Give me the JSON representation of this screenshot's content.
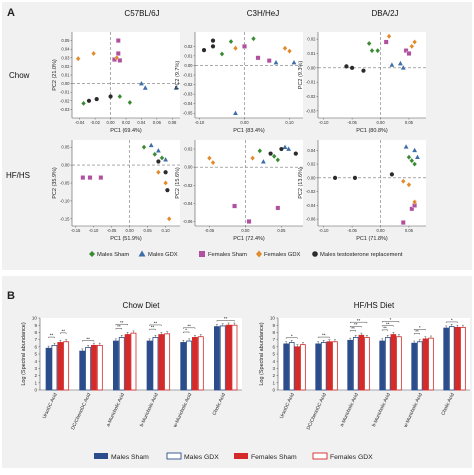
{
  "panel_a": {
    "label": "A",
    "strains": [
      "C57BL/6J",
      "C3H/HeJ",
      "DBA/2J"
    ],
    "diets": [
      "Chow",
      "HF/HS"
    ],
    "legend": [
      "Males Sham",
      "Males GDX",
      "Females Sham",
      "Females GDX",
      "Males testosterone replacement"
    ],
    "colors": {
      "males_sham": "#3a8a34",
      "males_gdx": "#3e6ea8",
      "females_sham": "#b0509e",
      "females_gdx": "#e28a2a",
      "males_testo": "#2b2b2b"
    }
  },
  "panel_b": {
    "label": "B",
    "legend": [
      "Males Sham",
      "Males GDX",
      "Females Sham",
      "Females GDX"
    ],
    "colors": {
      "males_sham": "#2b4d8c",
      "females_sham": "#d42a2a"
    },
    "ylabel": "Log (Spectral abundance)"
  },
  "chart_data": [
    {
      "type": "scatter",
      "title": "C57BL/6J",
      "row": "Chow",
      "xlabel": "PC1 (69.4%)",
      "ylabel": "PC2 (21.0%)",
      "xlim": [
        -0.05,
        0.09
      ],
      "ylim": [
        -0.04,
        0.06
      ],
      "xticks": [
        "-0.04",
        "-0.02",
        "0.00",
        "0.02",
        "0.04",
        "0.06",
        "0.08"
      ],
      "yticks": [
        "-0.03",
        "-0.02",
        "-0.01",
        "0.00",
        "0.01",
        "0.02",
        "0.03",
        "0.04",
        "0.05"
      ],
      "points": [
        {
          "g": "females_sham",
          "x": 0.01,
          "y": 0.05
        },
        {
          "g": "females_sham",
          "x": 0.01,
          "y": 0.035
        },
        {
          "g": "females_sham",
          "x": 0.005,
          "y": 0.028
        },
        {
          "g": "females_sham",
          "x": 0.012,
          "y": 0.027
        },
        {
          "g": "females_gdx",
          "x": -0.042,
          "y": 0.029
        },
        {
          "g": "females_gdx",
          "x": -0.022,
          "y": 0.035
        },
        {
          "g": "females_gdx",
          "x": 0.008,
          "y": 0.03
        },
        {
          "g": "males_sham",
          "x": -0.035,
          "y": -0.023
        },
        {
          "g": "males_sham",
          "x": 0.012,
          "y": -0.015
        },
        {
          "g": "males_sham",
          "x": 0.025,
          "y": -0.022
        },
        {
          "g": "males_gdx",
          "x": 0.045,
          "y": -0.005
        },
        {
          "g": "males_gdx",
          "x": 0.085,
          "y": -0.005
        },
        {
          "g": "males_gdx",
          "x": 0.04,
          "y": 0.0
        },
        {
          "g": "males_testo",
          "x": -0.028,
          "y": -0.02
        },
        {
          "g": "males_testo",
          "x": -0.018,
          "y": -0.018
        },
        {
          "g": "males_testo",
          "x": 0.0,
          "y": -0.015
        }
      ]
    },
    {
      "type": "scatter",
      "title": "C3H/HeJ",
      "row": "Chow",
      "xlabel": "PC1 (83.4%)",
      "ylabel": "PC2 (9.7%)",
      "xlim": [
        -0.11,
        0.13
      ],
      "ylim": [
        -0.055,
        0.035
      ],
      "xticks": [
        "-0.10",
        "0.00",
        "0.10"
      ],
      "yticks": [
        "-0.05",
        "-0.04",
        "-0.03",
        "-0.02",
        "-0.01",
        "0.00",
        "0.01",
        "0.02"
      ],
      "points": [
        {
          "g": "females_sham",
          "x": 0.0,
          "y": 0.02
        },
        {
          "g": "females_sham",
          "x": 0.03,
          "y": 0.008
        },
        {
          "g": "females_sham",
          "x": 0.055,
          "y": 0.005
        },
        {
          "g": "females_gdx",
          "x": -0.02,
          "y": 0.018
        },
        {
          "g": "females_gdx",
          "x": 0.09,
          "y": 0.018
        },
        {
          "g": "females_gdx",
          "x": 0.1,
          "y": 0.015
        },
        {
          "g": "males_sham",
          "x": -0.03,
          "y": 0.025
        },
        {
          "g": "males_sham",
          "x": 0.02,
          "y": 0.028
        },
        {
          "g": "males_sham",
          "x": -0.05,
          "y": 0.012
        },
        {
          "g": "males_gdx",
          "x": 0.07,
          "y": 0.003
        },
        {
          "g": "males_gdx",
          "x": 0.11,
          "y": 0.003
        },
        {
          "g": "males_gdx",
          "x": -0.02,
          "y": -0.05
        },
        {
          "g": "males_testo",
          "x": -0.07,
          "y": 0.026
        },
        {
          "g": "males_testo",
          "x": -0.07,
          "y": 0.02
        },
        {
          "g": "males_testo",
          "x": -0.09,
          "y": 0.016
        }
      ]
    },
    {
      "type": "scatter",
      "title": "DBA/2J",
      "row": "Chow",
      "xlabel": "PC1 (80.8%)",
      "ylabel": "PC2 (9.3%)",
      "xlim": [
        -0.11,
        0.08
      ],
      "ylim": [
        -0.035,
        0.025
      ],
      "xticks": [
        "-0.10",
        "-0.05",
        "0.00",
        "0.05"
      ],
      "yticks": [
        "-0.03",
        "-0.02",
        "-0.01",
        "0.00",
        "0.01",
        "0.02"
      ],
      "points": [
        {
          "g": "females_sham",
          "x": 0.01,
          "y": 0.018
        },
        {
          "g": "females_sham",
          "x": 0.045,
          "y": 0.012
        },
        {
          "g": "females_sham",
          "x": 0.05,
          "y": 0.01
        },
        {
          "g": "females_gdx",
          "x": 0.015,
          "y": 0.022
        },
        {
          "g": "females_gdx",
          "x": 0.055,
          "y": 0.015
        },
        {
          "g": "females_gdx",
          "x": 0.06,
          "y": 0.018
        },
        {
          "g": "males_sham",
          "x": -0.02,
          "y": 0.017
        },
        {
          "g": "males_sham",
          "x": -0.005,
          "y": 0.012
        },
        {
          "g": "males_sham",
          "x": -0.015,
          "y": 0.012
        },
        {
          "g": "males_gdx",
          "x": 0.02,
          "y": 0.002
        },
        {
          "g": "males_gdx",
          "x": 0.035,
          "y": 0.003
        },
        {
          "g": "males_gdx",
          "x": 0.04,
          "y": 0.0
        },
        {
          "g": "males_testo",
          "x": -0.06,
          "y": 0.001
        },
        {
          "g": "males_testo",
          "x": -0.05,
          "y": 0.0
        },
        {
          "g": "males_testo",
          "x": -0.03,
          "y": -0.002
        }
      ]
    },
    {
      "type": "scatter",
      "title": "C57BL/6J",
      "row": "HF/HS",
      "xlabel": "PC1 (51.9%)",
      "ylabel": "PC2 (35.9%)",
      "xlim": [
        -0.16,
        0.14
      ],
      "ylim": [
        -0.17,
        0.07
      ],
      "xticks": [
        "-0.15",
        "-0.10",
        "-0.05",
        "0.00",
        "0.05",
        "0.10"
      ],
      "yticks": [
        "-0.15",
        "-0.10",
        "-0.05",
        "0.00",
        "0.05"
      ],
      "points": [
        {
          "g": "females_sham",
          "x": -0.13,
          "y": -0.035
        },
        {
          "g": "females_sham",
          "x": -0.11,
          "y": -0.035
        },
        {
          "g": "females_sham",
          "x": -0.08,
          "y": -0.035
        },
        {
          "g": "females_gdx",
          "x": 0.1,
          "y": -0.05
        },
        {
          "g": "females_gdx",
          "x": 0.11,
          "y": -0.15
        },
        {
          "g": "females_gdx",
          "x": 0.08,
          "y": -0.02
        },
        {
          "g": "males_sham",
          "x": 0.04,
          "y": 0.05
        },
        {
          "g": "males_sham",
          "x": 0.07,
          "y": 0.03
        },
        {
          "g": "males_sham",
          "x": 0.09,
          "y": 0.02
        },
        {
          "g": "males_gdx",
          "x": 0.06,
          "y": 0.055
        },
        {
          "g": "males_gdx",
          "x": 0.08,
          "y": 0.04
        },
        {
          "g": "males_gdx",
          "x": 0.1,
          "y": 0.015
        },
        {
          "g": "males_testo",
          "x": 0.08,
          "y": 0.01
        },
        {
          "g": "males_testo",
          "x": 0.1,
          "y": -0.02
        },
        {
          "g": "males_testo",
          "x": 0.105,
          "y": -0.07
        }
      ]
    },
    {
      "type": "scatter",
      "title": "C3H/HeJ",
      "row": "HF/HS",
      "xlabel": "PC1 (72.4%)",
      "ylabel": "PC2 (15.6%)",
      "xlim": [
        -0.07,
        0.08
      ],
      "ylim": [
        -0.065,
        0.03
      ],
      "xticks": [
        "-0.05",
        "0.00",
        "0.05"
      ],
      "yticks": [
        "-0.06",
        "-0.04",
        "-0.02",
        "0.00",
        "0.02"
      ],
      "points": [
        {
          "g": "females_sham",
          "x": -0.015,
          "y": -0.043
        },
        {
          "g": "females_sham",
          "x": 0.045,
          "y": -0.045
        },
        {
          "g": "females_sham",
          "x": 0.005,
          "y": -0.06
        },
        {
          "g": "females_gdx",
          "x": -0.05,
          "y": 0.01
        },
        {
          "g": "females_gdx",
          "x": 0.01,
          "y": 0.01
        },
        {
          "g": "females_gdx",
          "x": -0.045,
          "y": 0.005
        },
        {
          "g": "males_sham",
          "x": 0.02,
          "y": 0.018
        },
        {
          "g": "males_sham",
          "x": 0.04,
          "y": 0.012
        },
        {
          "g": "males_sham",
          "x": 0.045,
          "y": 0.008
        },
        {
          "g": "males_gdx",
          "x": 0.055,
          "y": 0.022
        },
        {
          "g": "males_gdx",
          "x": 0.06,
          "y": 0.02
        },
        {
          "g": "males_gdx",
          "x": 0.025,
          "y": 0.006
        },
        {
          "g": "males_testo",
          "x": 0.035,
          "y": 0.015
        },
        {
          "g": "males_testo",
          "x": 0.05,
          "y": 0.02
        },
        {
          "g": "males_testo",
          "x": 0.07,
          "y": 0.015
        }
      ]
    },
    {
      "type": "scatter",
      "title": "DBA/2J",
      "row": "HF/HS",
      "xlabel": "PC1 (71.8%)",
      "ylabel": "PC2 (13.6%)",
      "xlim": [
        -0.11,
        0.08
      ],
      "ylim": [
        -0.07,
        0.055
      ],
      "xticks": [
        "-0.10",
        "-0.05",
        "0.00",
        "0.05"
      ],
      "yticks": [
        "-0.06",
        "-0.04",
        "-0.02",
        "0.00",
        "0.02",
        "0.04"
      ],
      "points": [
        {
          "g": "females_sham",
          "x": 0.04,
          "y": -0.065
        },
        {
          "g": "females_sham",
          "x": 0.055,
          "y": -0.045
        },
        {
          "g": "females_sham",
          "x": 0.06,
          "y": -0.04
        },
        {
          "g": "females_gdx",
          "x": 0.04,
          "y": -0.005
        },
        {
          "g": "females_gdx",
          "x": 0.05,
          "y": -0.01
        },
        {
          "g": "females_gdx",
          "x": 0.06,
          "y": -0.035
        },
        {
          "g": "males_sham",
          "x": 0.05,
          "y": 0.03
        },
        {
          "g": "males_sham",
          "x": 0.055,
          "y": 0.025
        },
        {
          "g": "males_sham",
          "x": 0.06,
          "y": 0.02
        },
        {
          "g": "males_gdx",
          "x": 0.045,
          "y": 0.045
        },
        {
          "g": "males_gdx",
          "x": 0.06,
          "y": 0.04
        },
        {
          "g": "males_gdx",
          "x": 0.065,
          "y": 0.03
        },
        {
          "g": "males_testo",
          "x": -0.08,
          "y": 0.0
        },
        {
          "g": "males_testo",
          "x": -0.045,
          "y": 0.0
        },
        {
          "g": "males_testo",
          "x": 0.02,
          "y": 0.005
        }
      ]
    },
    {
      "type": "bar",
      "title": "Chow Diet",
      "ylabel": "Log (Spectral abundance)",
      "ylim": [
        0,
        10
      ],
      "yticks": [
        "0",
        "1",
        "2",
        "3",
        "4",
        "5",
        "6",
        "7",
        "8",
        "9",
        "10"
      ],
      "categories": [
        "UrsoDC Acid",
        "DC/ChenoDC Acid",
        "a-Muricholic Acid",
        "b-Muricholic Acid",
        "w-Muricholic Acid",
        "Cholic Acid"
      ],
      "series": [
        {
          "name": "Males Sham",
          "values": [
            5.8,
            5.4,
            6.8,
            6.8,
            6.6,
            8.8
          ]
        },
        {
          "name": "Males GDX",
          "values": [
            6.2,
            5.9,
            7.3,
            7.3,
            6.8,
            8.9
          ]
        },
        {
          "name": "Females Sham",
          "values": [
            6.6,
            6.2,
            7.7,
            7.7,
            7.3,
            9.0
          ]
        },
        {
          "name": "Females GDX",
          "values": [
            6.7,
            6.2,
            7.9,
            7.8,
            7.4,
            9.0
          ]
        }
      ],
      "significance": [
        {
          "i": 0,
          "a": 0,
          "b": 1,
          "t": "**"
        },
        {
          "i": 0,
          "a": 2,
          "b": 3,
          "t": "**"
        },
        {
          "i": 1,
          "a": 0,
          "b": 2,
          "t": "**"
        },
        {
          "i": 2,
          "a": 0,
          "b": 1,
          "t": "**"
        },
        {
          "i": 2,
          "a": 0,
          "b": 2,
          "t": "**"
        },
        {
          "i": 3,
          "a": 0,
          "b": 1,
          "t": "**"
        },
        {
          "i": 3,
          "a": 0,
          "b": 2,
          "t": "**"
        },
        {
          "i": 4,
          "a": 0,
          "b": 1,
          "t": "*"
        },
        {
          "i": 4,
          "a": 0,
          "b": 2,
          "t": "**"
        },
        {
          "i": 5,
          "a": 0,
          "b": 3,
          "t": "**"
        }
      ]
    },
    {
      "type": "bar",
      "title": "HF/HS Diet",
      "ylabel": "Log (Spectral abundance)",
      "ylim": [
        0,
        10
      ],
      "yticks": [
        "0",
        "1",
        "2",
        "3",
        "4",
        "5",
        "6",
        "7",
        "8",
        "9",
        "10"
      ],
      "categories": [
        "UrsoDC Acid",
        "DC/ChenoDC Acid",
        "a-Muricholic Acid",
        "b-Muricholic Acid",
        "w-Muricholic Acid",
        "Cholic Acid"
      ],
      "series": [
        {
          "name": "Males Sham",
          "values": [
            6.4,
            6.4,
            6.9,
            6.8,
            6.5,
            8.6
          ]
        },
        {
          "name": "Males GDX",
          "values": [
            6.6,
            6.6,
            7.3,
            7.3,
            6.7,
            8.8
          ]
        },
        {
          "name": "Females Sham",
          "values": [
            6.0,
            6.7,
            7.6,
            7.7,
            7.1,
            8.7
          ]
        },
        {
          "name": "Females GDX",
          "values": [
            6.3,
            6.7,
            7.3,
            7.4,
            7.2,
            8.7
          ]
        }
      ],
      "significance": [
        {
          "i": 0,
          "a": 0,
          "b": 2,
          "t": "*"
        },
        {
          "i": 1,
          "a": 0,
          "b": 2,
          "t": "**"
        },
        {
          "i": 2,
          "a": 0,
          "b": 1,
          "t": "**"
        },
        {
          "i": 2,
          "a": 0,
          "b": 2,
          "t": "**"
        },
        {
          "i": 2,
          "a": 0,
          "b": 3,
          "t": "**"
        },
        {
          "i": 3,
          "a": 0,
          "b": 1,
          "t": "**"
        },
        {
          "i": 3,
          "a": 0,
          "b": 2,
          "t": "**"
        },
        {
          "i": 3,
          "a": 0,
          "b": 3,
          "t": "*"
        },
        {
          "i": 4,
          "a": 0,
          "b": 1,
          "t": "**"
        },
        {
          "i": 4,
          "a": 0,
          "b": 2,
          "t": "*"
        },
        {
          "i": 5,
          "a": 0,
          "b": 2,
          "t": "*"
        }
      ]
    }
  ]
}
